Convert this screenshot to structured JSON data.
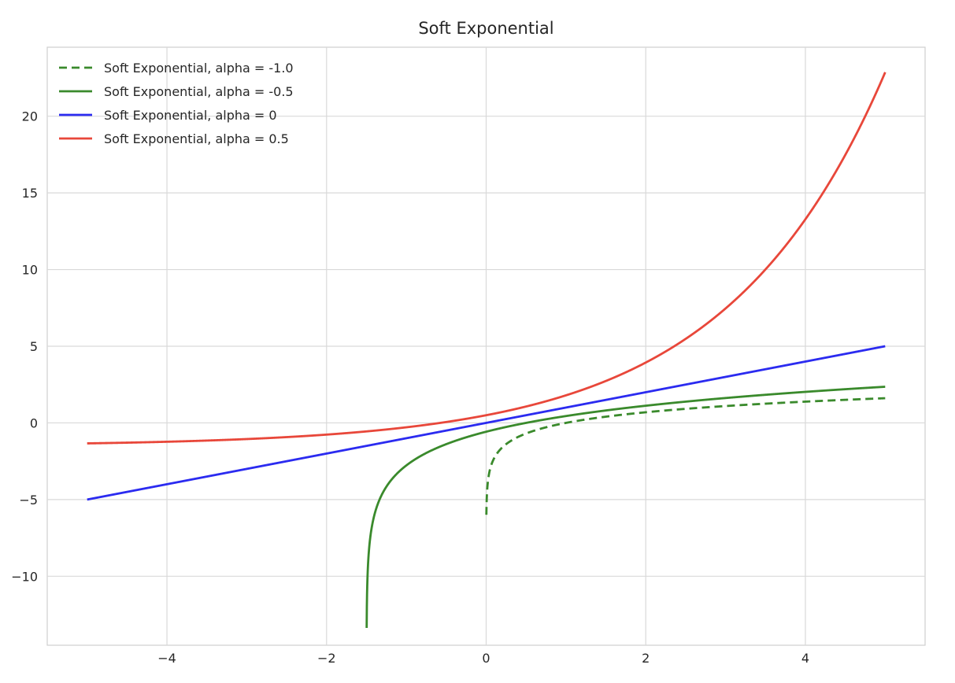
{
  "chart_data": {
    "type": "line",
    "title": "Soft Exponential",
    "xlabel": "",
    "ylabel": "",
    "xlim": [
      -5.5,
      5.5
    ],
    "ylim": [
      -14.5,
      24.5
    ],
    "x_ticks": [
      -4,
      -2,
      0,
      2,
      4
    ],
    "x_tick_labels": [
      "−4",
      "−2",
      "0",
      "2",
      "4"
    ],
    "y_ticks": [
      -10,
      -5,
      0,
      5,
      10,
      15,
      20
    ],
    "y_tick_labels": [
      "−10",
      "−5",
      "0",
      "5",
      "10",
      "15",
      "20"
    ],
    "grid": true,
    "legend_position": "top-left",
    "x_domain": [
      -5,
      5
    ],
    "series": [
      {
        "name": "Soft Exponential, alpha = -1.0",
        "alpha": -1.0,
        "color": "#3a8a2c",
        "style": "dashed"
      },
      {
        "name": "Soft Exponential, alpha = -0.5",
        "alpha": -0.5,
        "color": "#3a8a2c",
        "style": "solid"
      },
      {
        "name": "Soft Exponential, alpha = 0",
        "alpha": 0,
        "color": "#2b2bf0",
        "style": "solid"
      },
      {
        "name": "Soft Exponential, alpha = 0.5",
        "alpha": 0.5,
        "color": "#e8473a",
        "style": "solid"
      }
    ]
  }
}
